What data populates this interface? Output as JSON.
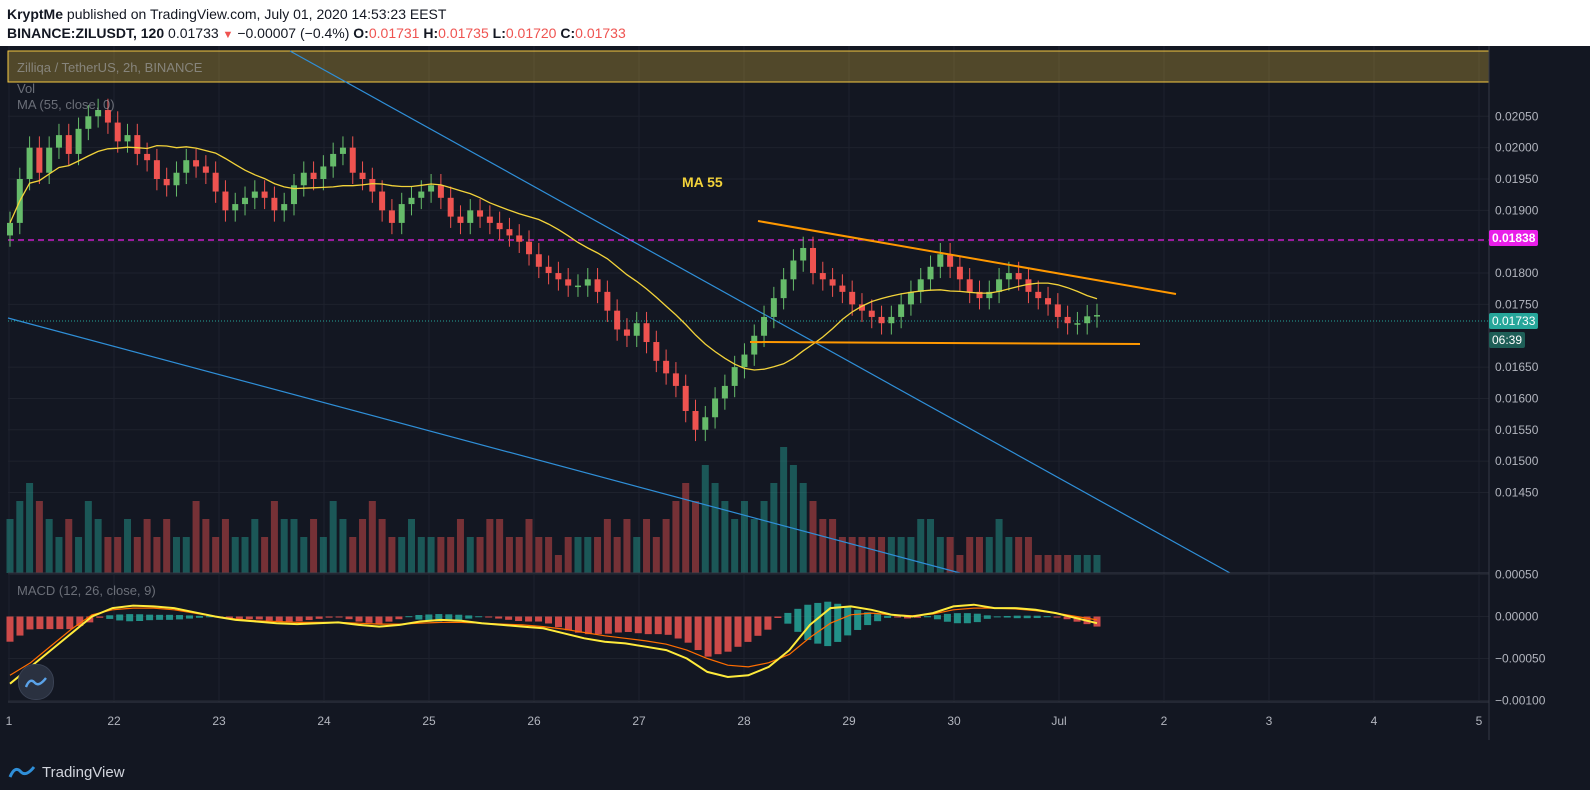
{
  "header": {
    "author": "KryptMe",
    "published": " published on TradingView.com, July 01, 2020 14:53:23 EEST",
    "symbol": "BINANCE:ZILUSDT, 120",
    "last": "0.01733",
    "change": "−0.00007 (−0.4%)",
    "o_label": "O:",
    "o_val": "0.01731",
    "h_label": "H:",
    "h_val": "0.01735",
    "l_label": "L:",
    "l_val": "0.01720",
    "c_label": "C:",
    "c_val": "0.01733"
  },
  "legend": {
    "pair": "Zilliqa / TetherUS, 2h, BINANCE",
    "vol": "Vol",
    "ma": "MA (55, close, 0)",
    "macd": "MACD (12, 26, close, 9)"
  },
  "annotations": {
    "ma_label": "MA 55",
    "magenta_level": "0.01838",
    "current_price": "0.01733",
    "countdown": "06:39"
  },
  "brand": {
    "name": "TradingView"
  },
  "colors": {
    "bg": "#131722",
    "up": "#26a69a",
    "down": "#ef5350",
    "candle_up": "#66bb6a",
    "ma": "#f3d33a",
    "orange": "#ff9800",
    "blue": "#2f8fd8",
    "magenta": "#e91ee9",
    "resistance_zone": "#f5c842"
  },
  "chart_data": [
    {
      "type": "candlestick",
      "title": "Zilliqa / TetherUS, 2h, BINANCE",
      "x_ticks": [
        "1",
        "22",
        "23",
        "24",
        "25",
        "26",
        "27",
        "28",
        "29",
        "30",
        "Jul",
        "2",
        "3",
        "4",
        "5"
      ],
      "y_ticks": [
        "0.02050",
        "0.02000",
        "0.01950",
        "0.01900",
        "0.01850",
        "0.01800",
        "0.01750",
        "0.01650",
        "0.01600",
        "0.01550",
        "0.01500",
        "0.01450"
      ],
      "ylim": [
        0.0143,
        0.0209
      ],
      "close_series": [
        0.0188,
        0.0195,
        0.02,
        0.0196,
        0.02,
        0.0202,
        0.0199,
        0.0203,
        0.0205,
        0.0206,
        0.0204,
        0.0201,
        0.0202,
        0.0199,
        0.0198,
        0.0195,
        0.0194,
        0.0196,
        0.0198,
        0.0197,
        0.0196,
        0.0193,
        0.019,
        0.0191,
        0.0192,
        0.0193,
        0.0192,
        0.019,
        0.0191,
        0.0194,
        0.0196,
        0.0195,
        0.0197,
        0.0199,
        0.02,
        0.0196,
        0.0195,
        0.0193,
        0.019,
        0.0188,
        0.0191,
        0.0192,
        0.0193,
        0.0194,
        0.0192,
        0.0189,
        0.0188,
        0.019,
        0.0189,
        0.0188,
        0.0187,
        0.0186,
        0.0185,
        0.0183,
        0.0181,
        0.018,
        0.0179,
        0.0178,
        0.0178,
        0.0179,
        0.0177,
        0.0174,
        0.0171,
        0.017,
        0.0172,
        0.0169,
        0.0166,
        0.0164,
        0.0162,
        0.0158,
        0.0155,
        0.0157,
        0.016,
        0.0162,
        0.0165,
        0.0167,
        0.017,
        0.0173,
        0.0176,
        0.0179,
        0.0182,
        0.0184,
        0.018,
        0.0179,
        0.0178,
        0.0177,
        0.0175,
        0.0174,
        0.0173,
        0.0172,
        0.0173,
        0.0175,
        0.0177,
        0.0179,
        0.0181,
        0.0183,
        0.0181,
        0.0179,
        0.0177,
        0.0176,
        0.0177,
        0.0179,
        0.018,
        0.0179,
        0.0177,
        0.0176,
        0.0175,
        0.0173,
        0.0172,
        0.0172,
        0.01731,
        0.01733
      ],
      "ma55_label": "MA 55",
      "levels": {
        "resistance_zone": [
          0.02038,
          0.02075
        ],
        "magenta_line": 0.01838,
        "current_price": 0.01733
      },
      "trendlines": [
        {
          "name": "descending-resistance",
          "color": "orange"
        },
        {
          "name": "horizontal-support",
          "color": "orange",
          "value": 0.01705
        },
        {
          "name": "long-downtrend-1",
          "color": "blue"
        },
        {
          "name": "long-downtrend-2",
          "color": "blue"
        }
      ]
    },
    {
      "type": "bar",
      "title": "Vol",
      "values": [
        3,
        4,
        5,
        4,
        3,
        2,
        3,
        2,
        4,
        3,
        2,
        2,
        3,
        2,
        3,
        2,
        3,
        2,
        2,
        4,
        3,
        2,
        3,
        2,
        2,
        3,
        2,
        4,
        3,
        3,
        2,
        3,
        2,
        4,
        3,
        2,
        3,
        4,
        3,
        2,
        2,
        3,
        2,
        2,
        2,
        2,
        3,
        2,
        2,
        3,
        3,
        2,
        2,
        3,
        2,
        2,
        1,
        2,
        2,
        2,
        2,
        3,
        2,
        3,
        2,
        3,
        2,
        3,
        4,
        5,
        4,
        6,
        5,
        4,
        3,
        4,
        3,
        4,
        5,
        7,
        6,
        5,
        4,
        3,
        3,
        2,
        2,
        2,
        2,
        2,
        2,
        2,
        2,
        3,
        3,
        2,
        2,
        1,
        2,
        2,
        2,
        3,
        2,
        2,
        2,
        1,
        1,
        1,
        1,
        1,
        1,
        1
      ]
    },
    {
      "type": "line",
      "title": "MACD (12, 26, close, 9)",
      "y_ticks": [
        "0.00050",
        "0.00000",
        "−0.00050",
        "−0.00100"
      ],
      "ylim": [
        -0.0011,
        0.00055
      ],
      "macd": [
        -0.0008,
        -0.0006,
        -0.0004,
        -0.0002,
        0.0,
        0.0001,
        0.00013,
        0.00012,
        0.0001,
        5e-05,
        0.0,
        -4e-05,
        -6e-05,
        -8e-05,
        -9e-05,
        -8e-05,
        -7e-05,
        -0.0001,
        -0.00012,
        -0.0001,
        -6e-05,
        -4e-05,
        -5e-05,
        -8e-05,
        -0.0001,
        -0.00012,
        -0.00014,
        -0.0002,
        -0.00026,
        -0.0003,
        -0.00032,
        -0.00036,
        -0.0004,
        -0.0005,
        -0.00066,
        -0.00072,
        -0.0007,
        -0.0006,
        -0.0004,
        -0.0001,
        0.0001,
        0.00012,
        8e-05,
        2e-05,
        0.0,
        4e-05,
        0.00012,
        0.00014,
        0.0001,
        0.0001,
        8e-05,
        4e-05,
        -2e-05,
        -8e-05
      ],
      "signal": [
        -0.0007,
        -0.00055,
        -0.00035,
        -0.00015,
        2e-05,
        8e-05,
        0.0001,
        0.0001,
        8e-05,
        4e-05,
        0.0,
        -3e-05,
        -5e-05,
        -6e-05,
        -7e-05,
        -7e-05,
        -7e-05,
        -8e-05,
        -9e-05,
        -9e-05,
        -8e-05,
        -7e-05,
        -7e-05,
        -8e-05,
        -9e-05,
        -0.0001,
        -0.00012,
        -0.00015,
        -0.00019,
        -0.00023,
        -0.00026,
        -0.00029,
        -0.00033,
        -0.0004,
        -0.0005,
        -0.00058,
        -0.0006,
        -0.00055,
        -0.00045,
        -0.00025,
        -8e-05,
        2e-05,
        4e-05,
        2e-05,
        1e-05,
        3e-05,
        8e-05,
        0.0001,
        0.0001,
        9e-05,
        7e-05,
        4e-05,
        0.0,
        -4e-05
      ]
    }
  ]
}
